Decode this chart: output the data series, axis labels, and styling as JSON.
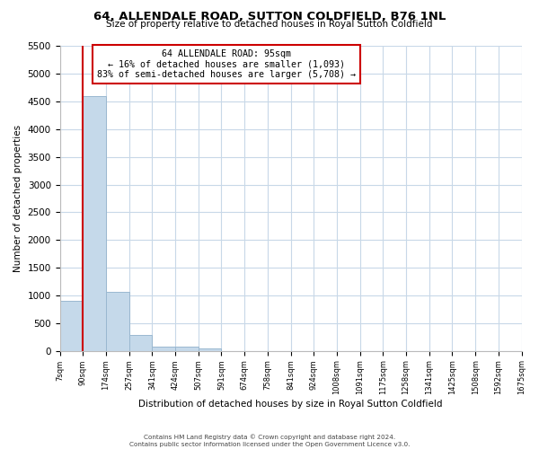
{
  "title": "64, ALLENDALE ROAD, SUTTON COLDFIELD, B76 1NL",
  "subtitle": "Size of property relative to detached houses in Royal Sutton Coldfield",
  "xlabel": "Distribution of detached houses by size in Royal Sutton Coldfield",
  "ylabel": "Number of detached properties",
  "bin_labels": [
    "7sqm",
    "90sqm",
    "174sqm",
    "257sqm",
    "341sqm",
    "424sqm",
    "507sqm",
    "591sqm",
    "674sqm",
    "758sqm",
    "841sqm",
    "924sqm",
    "1008sqm",
    "1091sqm",
    "1175sqm",
    "1258sqm",
    "1341sqm",
    "1425sqm",
    "1508sqm",
    "1592sqm",
    "1675sqm"
  ],
  "bar_heights": [
    900,
    4600,
    1070,
    290,
    80,
    75,
    45,
    0,
    0,
    0,
    0,
    0,
    0,
    0,
    0,
    0,
    0,
    0,
    0,
    0
  ],
  "bar_color": "#c5d9ea",
  "bar_edge_color": "#9ab8d0",
  "vline_x": 1.0,
  "vline_color": "#cc0000",
  "ylim": [
    0,
    5500
  ],
  "yticks": [
    0,
    500,
    1000,
    1500,
    2000,
    2500,
    3000,
    3500,
    4000,
    4500,
    5000,
    5500
  ],
  "annotation_title": "64 ALLENDALE ROAD: 95sqm",
  "annotation_line1": "← 16% of detached houses are smaller (1,093)",
  "annotation_line2": "83% of semi-detached houses are larger (5,708) →",
  "annotation_box_color": "#ffffff",
  "annotation_box_edge": "#cc0000",
  "footer1": "Contains HM Land Registry data © Crown copyright and database right 2024.",
  "footer2": "Contains public sector information licensed under the Open Government Licence v3.0.",
  "grid_color": "#c8d8e8",
  "bg_color": "#ffffff"
}
